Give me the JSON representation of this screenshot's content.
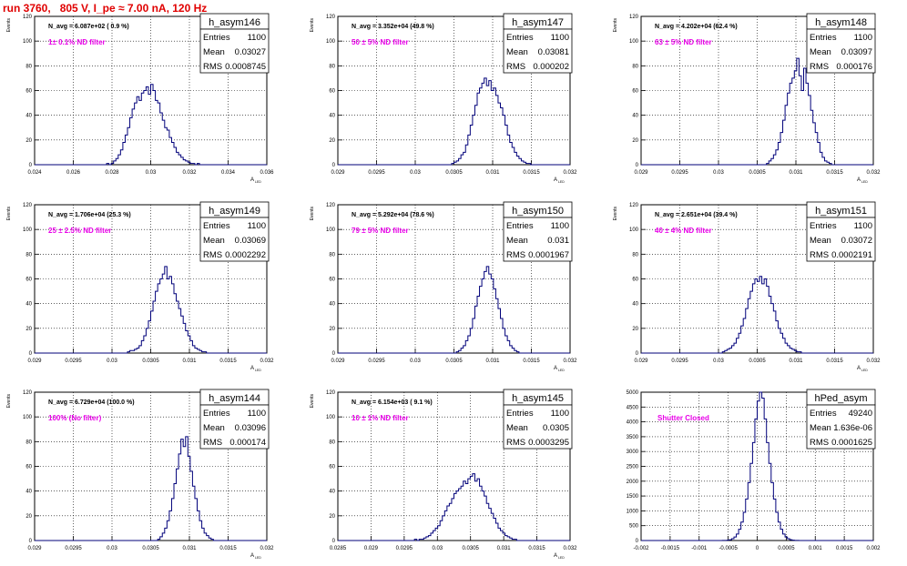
{
  "run_title": "run 3760,   805 V, I_pe ≈ 7.00 nA, 120 Hz",
  "chart_data": [
    {
      "type": "histogram",
      "name": "h_asym146",
      "entries": "1100",
      "mean": "0.03027",
      "rms": "0.0008745",
      "navg": "N_avg = 6.087e+02 ( 0.9 %)",
      "filter": "1± 0.1% ND filter",
      "ylabel": "Events",
      "xlabel": "A_{LED}",
      "xlim": [
        0.024,
        0.036
      ],
      "ylim": [
        0,
        120
      ],
      "xticks": [
        0.024,
        0.026,
        0.028,
        0.03,
        0.032,
        0.034,
        0.036
      ],
      "xticklabels": [
        "0.024",
        "0.026",
        "0.028",
        "0.03",
        "0.032",
        "0.034",
        "0.036"
      ],
      "yticks": [
        0,
        20,
        40,
        60,
        80,
        100,
        120
      ],
      "nbins": 100,
      "heights": [
        0,
        0,
        0,
        0,
        0,
        0,
        0,
        0,
        0,
        0,
        0,
        0,
        0,
        0,
        0,
        0,
        0,
        0,
        0,
        0,
        0,
        0,
        0,
        0,
        0,
        0,
        0,
        0,
        0,
        0,
        0,
        1,
        0,
        1,
        3,
        5,
        8,
        12,
        18,
        24,
        30,
        38,
        45,
        50,
        55,
        52,
        58,
        60,
        63,
        57,
        65,
        60,
        52,
        50,
        42,
        36,
        30,
        28,
        22,
        18,
        14,
        10,
        8,
        6,
        4,
        3,
        2,
        1,
        1,
        0,
        1,
        0,
        0,
        0,
        0,
        0,
        0,
        0,
        0,
        0,
        0,
        0,
        0,
        0,
        0,
        0,
        0,
        0,
        0,
        0,
        0,
        0,
        0,
        0,
        0,
        0,
        0,
        0,
        0,
        0
      ]
    },
    {
      "type": "histogram",
      "name": "h_asym147",
      "entries": "1100",
      "mean": "0.03081",
      "rms": "0.000202",
      "navg": "N_avg = 3.352e+04 (49.8 %)",
      "filter": "50 ± 5% ND filter",
      "ylabel": "Events",
      "xlabel": "A_{LED}",
      "xlim": [
        0.029,
        0.032
      ],
      "ylim": [
        0,
        120
      ],
      "xticks": [
        0.029,
        0.0295,
        0.03,
        0.0305,
        0.031,
        0.0315,
        0.032
      ],
      "xticklabels": [
        "0.029",
        "0.0295",
        "0.03",
        "0.0305",
        "0.031",
        "0.0315",
        "0.032"
      ],
      "yticks": [
        0,
        20,
        40,
        60,
        80,
        100,
        120
      ],
      "nbins": 100,
      "heights": [
        0,
        0,
        0,
        0,
        0,
        0,
        0,
        0,
        0,
        0,
        0,
        0,
        0,
        0,
        0,
        0,
        0,
        0,
        0,
        0,
        0,
        0,
        0,
        0,
        0,
        0,
        0,
        0,
        0,
        0,
        0,
        0,
        0,
        0,
        0,
        0,
        0,
        0,
        0,
        0,
        0,
        0,
        0,
        0,
        0,
        0,
        0,
        0,
        0,
        1,
        2,
        3,
        5,
        8,
        10,
        16,
        24,
        32,
        40,
        48,
        58,
        62,
        66,
        70,
        64,
        68,
        60,
        62,
        56,
        50,
        46,
        40,
        32,
        24,
        18,
        14,
        10,
        7,
        5,
        3,
        2,
        1,
        1,
        0,
        0,
        0,
        0,
        0,
        0,
        0,
        0,
        0,
        0,
        0,
        0,
        0,
        0,
        0,
        0,
        0
      ]
    },
    {
      "type": "histogram",
      "name": "h_asym148",
      "entries": "1100",
      "mean": "0.03097",
      "rms": "0.000176",
      "navg": "N_avg = 4.202e+04 (62.4 %)",
      "filter": "63 ± 5% ND filter",
      "ylabel": "Events",
      "xlabel": "A_{LED}",
      "xlim": [
        0.029,
        0.032
      ],
      "ylim": [
        0,
        120
      ],
      "xticks": [
        0.029,
        0.0295,
        0.03,
        0.0305,
        0.031,
        0.0315,
        0.032
      ],
      "xticklabels": [
        "0.029",
        "0.0295",
        "0.03",
        "0.0305",
        "0.031",
        "0.0315",
        "0.032"
      ],
      "yticks": [
        0,
        20,
        40,
        60,
        80,
        100,
        120
      ],
      "nbins": 100,
      "heights": [
        0,
        0,
        0,
        0,
        0,
        0,
        0,
        0,
        0,
        0,
        0,
        0,
        0,
        0,
        0,
        0,
        0,
        0,
        0,
        0,
        0,
        0,
        0,
        0,
        0,
        0,
        0,
        0,
        0,
        0,
        0,
        0,
        0,
        0,
        0,
        0,
        0,
        0,
        0,
        0,
        0,
        0,
        0,
        0,
        0,
        0,
        0,
        0,
        0,
        0,
        0,
        0,
        0,
        0,
        1,
        3,
        5,
        8,
        12,
        18,
        26,
        36,
        48,
        58,
        66,
        70,
        76,
        86,
        72,
        60,
        78,
        66,
        56,
        44,
        34,
        26,
        18,
        10,
        6,
        3,
        2,
        1,
        0,
        0,
        0,
        0,
        0,
        0,
        0,
        0,
        0,
        0,
        0,
        0,
        0,
        0,
        0,
        0,
        0,
        0
      ]
    },
    {
      "type": "histogram",
      "name": "h_asym149",
      "entries": "1100",
      "mean": "0.03069",
      "rms": "0.0002292",
      "navg": "N_avg = 1.706e+04 (25.3 %)",
      "filter": "25 ± 2.5% ND filter",
      "ylabel": "Events",
      "xlabel": "A_{LED}",
      "xlim": [
        0.029,
        0.032
      ],
      "ylim": [
        0,
        120
      ],
      "xticks": [
        0.029,
        0.0295,
        0.03,
        0.0305,
        0.031,
        0.0315,
        0.032
      ],
      "xticklabels": [
        "0.029",
        "0.0295",
        "0.03",
        "0.0305",
        "0.031",
        "0.0315",
        "0.032"
      ],
      "yticks": [
        0,
        20,
        40,
        60,
        80,
        100,
        120
      ],
      "nbins": 100,
      "heights": [
        0,
        0,
        0,
        0,
        0,
        0,
        0,
        0,
        0,
        0,
        0,
        0,
        0,
        0,
        0,
        0,
        0,
        0,
        0,
        0,
        0,
        0,
        0,
        0,
        0,
        0,
        0,
        0,
        0,
        0,
        0,
        0,
        0,
        0,
        0,
        0,
        0,
        0,
        0,
        0,
        1,
        2,
        2,
        3,
        4,
        6,
        10,
        14,
        20,
        26,
        34,
        42,
        50,
        56,
        60,
        64,
        70,
        60,
        62,
        56,
        48,
        42,
        36,
        30,
        24,
        18,
        14,
        10,
        6,
        4,
        3,
        2,
        1,
        1,
        0,
        0,
        0,
        0,
        0,
        0,
        0,
        0,
        0,
        0,
        0,
        0,
        0,
        0,
        0,
        0,
        0,
        0,
        0,
        0,
        0,
        0,
        0,
        0,
        0,
        0
      ]
    },
    {
      "type": "histogram",
      "name": "h_asym150",
      "entries": "1100",
      "mean": "0.031",
      "rms": "0.0001967",
      "navg": "N_avg = 5.292e+04 (78.6 %)",
      "filter": "79 ± 5% ND filter",
      "ylabel": "Events",
      "xlabel": "A_{LED}",
      "xlim": [
        0.029,
        0.032
      ],
      "ylim": [
        0,
        120
      ],
      "xticks": [
        0.029,
        0.0295,
        0.03,
        0.0305,
        0.031,
        0.0315,
        0.032
      ],
      "xticklabels": [
        "0.029",
        "0.0295",
        "0.03",
        "0.0305",
        "0.031",
        "0.0315",
        "0.032"
      ],
      "yticks": [
        0,
        20,
        40,
        60,
        80,
        100,
        120
      ],
      "nbins": 100,
      "heights": [
        0,
        0,
        0,
        0,
        0,
        0,
        0,
        0,
        0,
        0,
        0,
        0,
        0,
        0,
        0,
        0,
        0,
        0,
        0,
        0,
        0,
        0,
        0,
        0,
        0,
        0,
        0,
        0,
        0,
        0,
        0,
        0,
        0,
        0,
        0,
        0,
        0,
        0,
        0,
        0,
        0,
        0,
        0,
        0,
        0,
        0,
        0,
        0,
        0,
        0,
        0,
        1,
        2,
        4,
        6,
        10,
        14,
        20,
        28,
        38,
        46,
        54,
        60,
        66,
        70,
        64,
        60,
        52,
        44,
        36,
        28,
        20,
        14,
        10,
        6,
        4,
        2,
        1,
        0,
        0,
        0,
        0,
        0,
        0,
        0,
        0,
        0,
        0,
        0,
        0,
        0,
        0,
        0,
        0,
        0,
        0,
        0,
        0,
        0,
        0
      ]
    },
    {
      "type": "histogram",
      "name": "h_asym151",
      "entries": "1100",
      "mean": "0.03072",
      "rms": "0.0002191",
      "navg": "N_avg = 2.651e+04 (39.4 %)",
      "filter": "40 ± 4% ND filter",
      "ylabel": "Events",
      "xlabel": "A_{LED}",
      "xlim": [
        0.029,
        0.032
      ],
      "ylim": [
        0,
        120
      ],
      "xticks": [
        0.029,
        0.0295,
        0.03,
        0.0305,
        0.031,
        0.0315,
        0.032
      ],
      "xticklabels": [
        "0.029",
        "0.0295",
        "0.03",
        "0.0305",
        "0.031",
        "0.0315",
        "0.032"
      ],
      "yticks": [
        0,
        20,
        40,
        60,
        80,
        100,
        120
      ],
      "nbins": 100,
      "heights": [
        0,
        0,
        0,
        0,
        0,
        0,
        0,
        0,
        0,
        0,
        0,
        0,
        0,
        0,
        0,
        0,
        0,
        0,
        0,
        0,
        0,
        0,
        0,
        0,
        0,
        0,
        0,
        0,
        0,
        0,
        0,
        0,
        0,
        0,
        0,
        1,
        2,
        3,
        4,
        6,
        8,
        12,
        16,
        22,
        28,
        36,
        44,
        50,
        56,
        60,
        58,
        62,
        56,
        60,
        54,
        46,
        40,
        34,
        26,
        20,
        16,
        12,
        8,
        6,
        4,
        3,
        2,
        1,
        1,
        0,
        0,
        0,
        0,
        0,
        0,
        0,
        0,
        0,
        0,
        0,
        0,
        0,
        0,
        0,
        0,
        0,
        0,
        0,
        0,
        0,
        0,
        0,
        0,
        0,
        0,
        0,
        0,
        0,
        0,
        0
      ]
    },
    {
      "type": "histogram",
      "name": "h_asym144",
      "entries": "1100",
      "mean": "0.03096",
      "rms": "0.000174",
      "navg": "N_avg = 6.729e+04 (100.0 %)",
      "filter": "100% (No filter)",
      "ylabel": "Events",
      "xlabel": "A_{LED}",
      "xlim": [
        0.029,
        0.032
      ],
      "ylim": [
        0,
        120
      ],
      "xticks": [
        0.029,
        0.0295,
        0.03,
        0.0305,
        0.031,
        0.0315,
        0.032
      ],
      "xticklabels": [
        "0.029",
        "0.0295",
        "0.03",
        "0.0305",
        "0.031",
        "0.0315",
        "0.032"
      ],
      "yticks": [
        0,
        20,
        40,
        60,
        80,
        100,
        120
      ],
      "nbins": 100,
      "heights": [
        0,
        0,
        0,
        0,
        0,
        0,
        0,
        0,
        0,
        0,
        0,
        0,
        0,
        0,
        0,
        0,
        0,
        0,
        0,
        0,
        0,
        0,
        0,
        0,
        0,
        0,
        0,
        0,
        0,
        0,
        0,
        0,
        0,
        0,
        0,
        0,
        0,
        0,
        0,
        0,
        0,
        0,
        0,
        0,
        0,
        0,
        0,
        0,
        0,
        0,
        0,
        0,
        0,
        1,
        3,
        6,
        10,
        16,
        24,
        34,
        46,
        58,
        70,
        82,
        76,
        84,
        68,
        56,
        44,
        34,
        24,
        16,
        10,
        6,
        4,
        2,
        1,
        0,
        0,
        0,
        0,
        0,
        0,
        0,
        0,
        0,
        0,
        0,
        0,
        0,
        0,
        0,
        0,
        0,
        0,
        0,
        0,
        0,
        0,
        0
      ]
    },
    {
      "type": "histogram",
      "name": "h_asym145",
      "entries": "1100",
      "mean": "0.0305",
      "rms": "0.0003295",
      "navg": "N_avg = 6.154e+03 ( 9.1 %)",
      "filter": "10 ± 1% ND filter",
      "ylabel": "Events",
      "xlabel": "A_{LED}",
      "xlim": [
        0.0285,
        0.032
      ],
      "ylim": [
        0,
        120
      ],
      "xticks": [
        0.0285,
        0.029,
        0.0295,
        0.03,
        0.0305,
        0.031,
        0.0315,
        0.032
      ],
      "xticklabels": [
        "0.0285",
        "0.029",
        "0.0295",
        "0.03",
        "0.0305",
        "0.031",
        "0.0315",
        "0.032"
      ],
      "yticks": [
        0,
        20,
        40,
        60,
        80,
        100,
        120
      ],
      "nbins": 100,
      "heights": [
        0,
        0,
        0,
        0,
        0,
        0,
        0,
        0,
        0,
        0,
        0,
        0,
        0,
        0,
        0,
        0,
        0,
        0,
        0,
        0,
        0,
        0,
        0,
        0,
        0,
        0,
        0,
        0,
        0,
        0,
        0,
        0,
        0,
        1,
        0,
        1,
        1,
        2,
        3,
        4,
        6,
        8,
        10,
        12,
        16,
        20,
        24,
        28,
        30,
        34,
        38,
        40,
        42,
        44,
        48,
        46,
        50,
        52,
        54,
        48,
        50,
        44,
        40,
        36,
        30,
        26,
        22,
        18,
        14,
        10,
        8,
        6,
        4,
        3,
        2,
        1,
        1,
        0,
        0,
        0,
        0,
        0,
        0,
        0,
        0,
        0,
        0,
        0,
        0,
        0,
        0,
        0,
        0,
        0,
        0,
        0,
        0,
        0,
        0,
        0
      ]
    },
    {
      "type": "histogram",
      "name": "hPed_asym",
      "entries": "49240",
      "mean": "1.636e-06",
      "rms": "0.0001625",
      "navg": "",
      "filter": "Shutter Closed",
      "ylabel": "",
      "xlabel": "",
      "xlim": [
        -0.002,
        0.002
      ],
      "ylim": [
        0,
        5000
      ],
      "xticks": [
        -0.002,
        -0.0015,
        -0.001,
        -0.0005,
        0,
        0.0005,
        0.001,
        0.0015,
        0.002
      ],
      "xticklabels": [
        "-0.002",
        "-0.0015",
        "-0.001",
        "-0.0005",
        "0",
        "0.0005",
        "0.001",
        "0.0015",
        "0.002"
      ],
      "yticks": [
        0,
        500,
        1000,
        1500,
        2000,
        2500,
        3000,
        3500,
        4000,
        4500,
        5000
      ],
      "nbins": 100,
      "heights": [
        0,
        0,
        0,
        0,
        0,
        0,
        0,
        0,
        0,
        0,
        0,
        0,
        0,
        0,
        0,
        0,
        0,
        0,
        0,
        0,
        0,
        0,
        0,
        0,
        0,
        0,
        0,
        0,
        0,
        0,
        0,
        0,
        0,
        0,
        0,
        2,
        5,
        12,
        28,
        60,
        120,
        220,
        380,
        620,
        950,
        1400,
        1950,
        2600,
        3300,
        4100,
        4700,
        5050,
        4800,
        4100,
        3300,
        2600,
        1950,
        1400,
        950,
        620,
        380,
        220,
        120,
        60,
        28,
        12,
        5,
        2,
        0,
        0,
        0,
        0,
        0,
        0,
        0,
        0,
        0,
        0,
        0,
        0,
        0,
        0,
        0,
        0,
        0,
        0,
        0,
        0,
        0,
        0,
        0,
        0,
        0,
        0,
        0,
        0,
        0,
        0,
        0,
        0
      ]
    }
  ]
}
